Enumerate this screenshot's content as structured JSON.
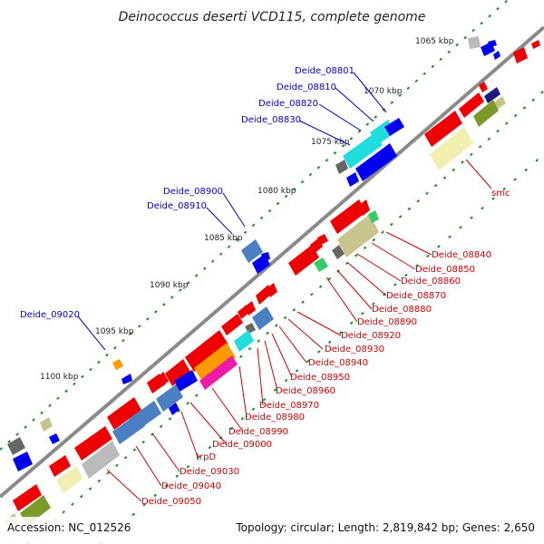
{
  "title": "Deinococcus deserti VCD115, complete genome",
  "footer": {
    "accession": "Accession: NC_012526",
    "stats": "Topology: circular; Length: 2,819,842 bp; Genes: 2,650"
  },
  "kbp_ticks": [
    "1065 kbp",
    "1070 kbp",
    "1075 kbp",
    "1080 kbp",
    "1085 kbp",
    "1090 kbp",
    "1095 kbp",
    "1100 kbp"
  ],
  "labels_outer": [
    "Deide_08801",
    "Deide_08810",
    "Deide_08820",
    "Deide_08830",
    "Deide_08900",
    "Deide_08910",
    "Deide_09020"
  ],
  "labels_inner": [
    "smc",
    "Deide_08840",
    "Deide_08850",
    "Deide_08860",
    "Deide_08870",
    "Deide_08880",
    "Deide_08890",
    "Deide_08920",
    "Deide_08930",
    "Deide_08940",
    "Deide_08950",
    "Deide_08960",
    "Deide_08970",
    "Deide_08980",
    "Deide_08990",
    "Deide_09000",
    "trpD",
    "Deide_09030",
    "Deide_09040",
    "Deide_09050"
  ],
  "colors": {
    "outer_label": "#0000cc",
    "inner_label": "#d00000",
    "backbone": "#808080",
    "tick_green": "#1a8c1a",
    "cds_red": "#ee0000",
    "blue": "#0000ee",
    "steel": "#4a7fc1",
    "cyan": "#22dddd",
    "khaki": "#c8c58c",
    "pale": "#f0efb0",
    "olive": "#7a9a2a",
    "grey": "#999999",
    "darkgrey": "#666666",
    "navy": "#1a1a80",
    "orange": "#ff9900",
    "magenta": "#ee1aa8",
    "green": "#33cc66"
  }
}
